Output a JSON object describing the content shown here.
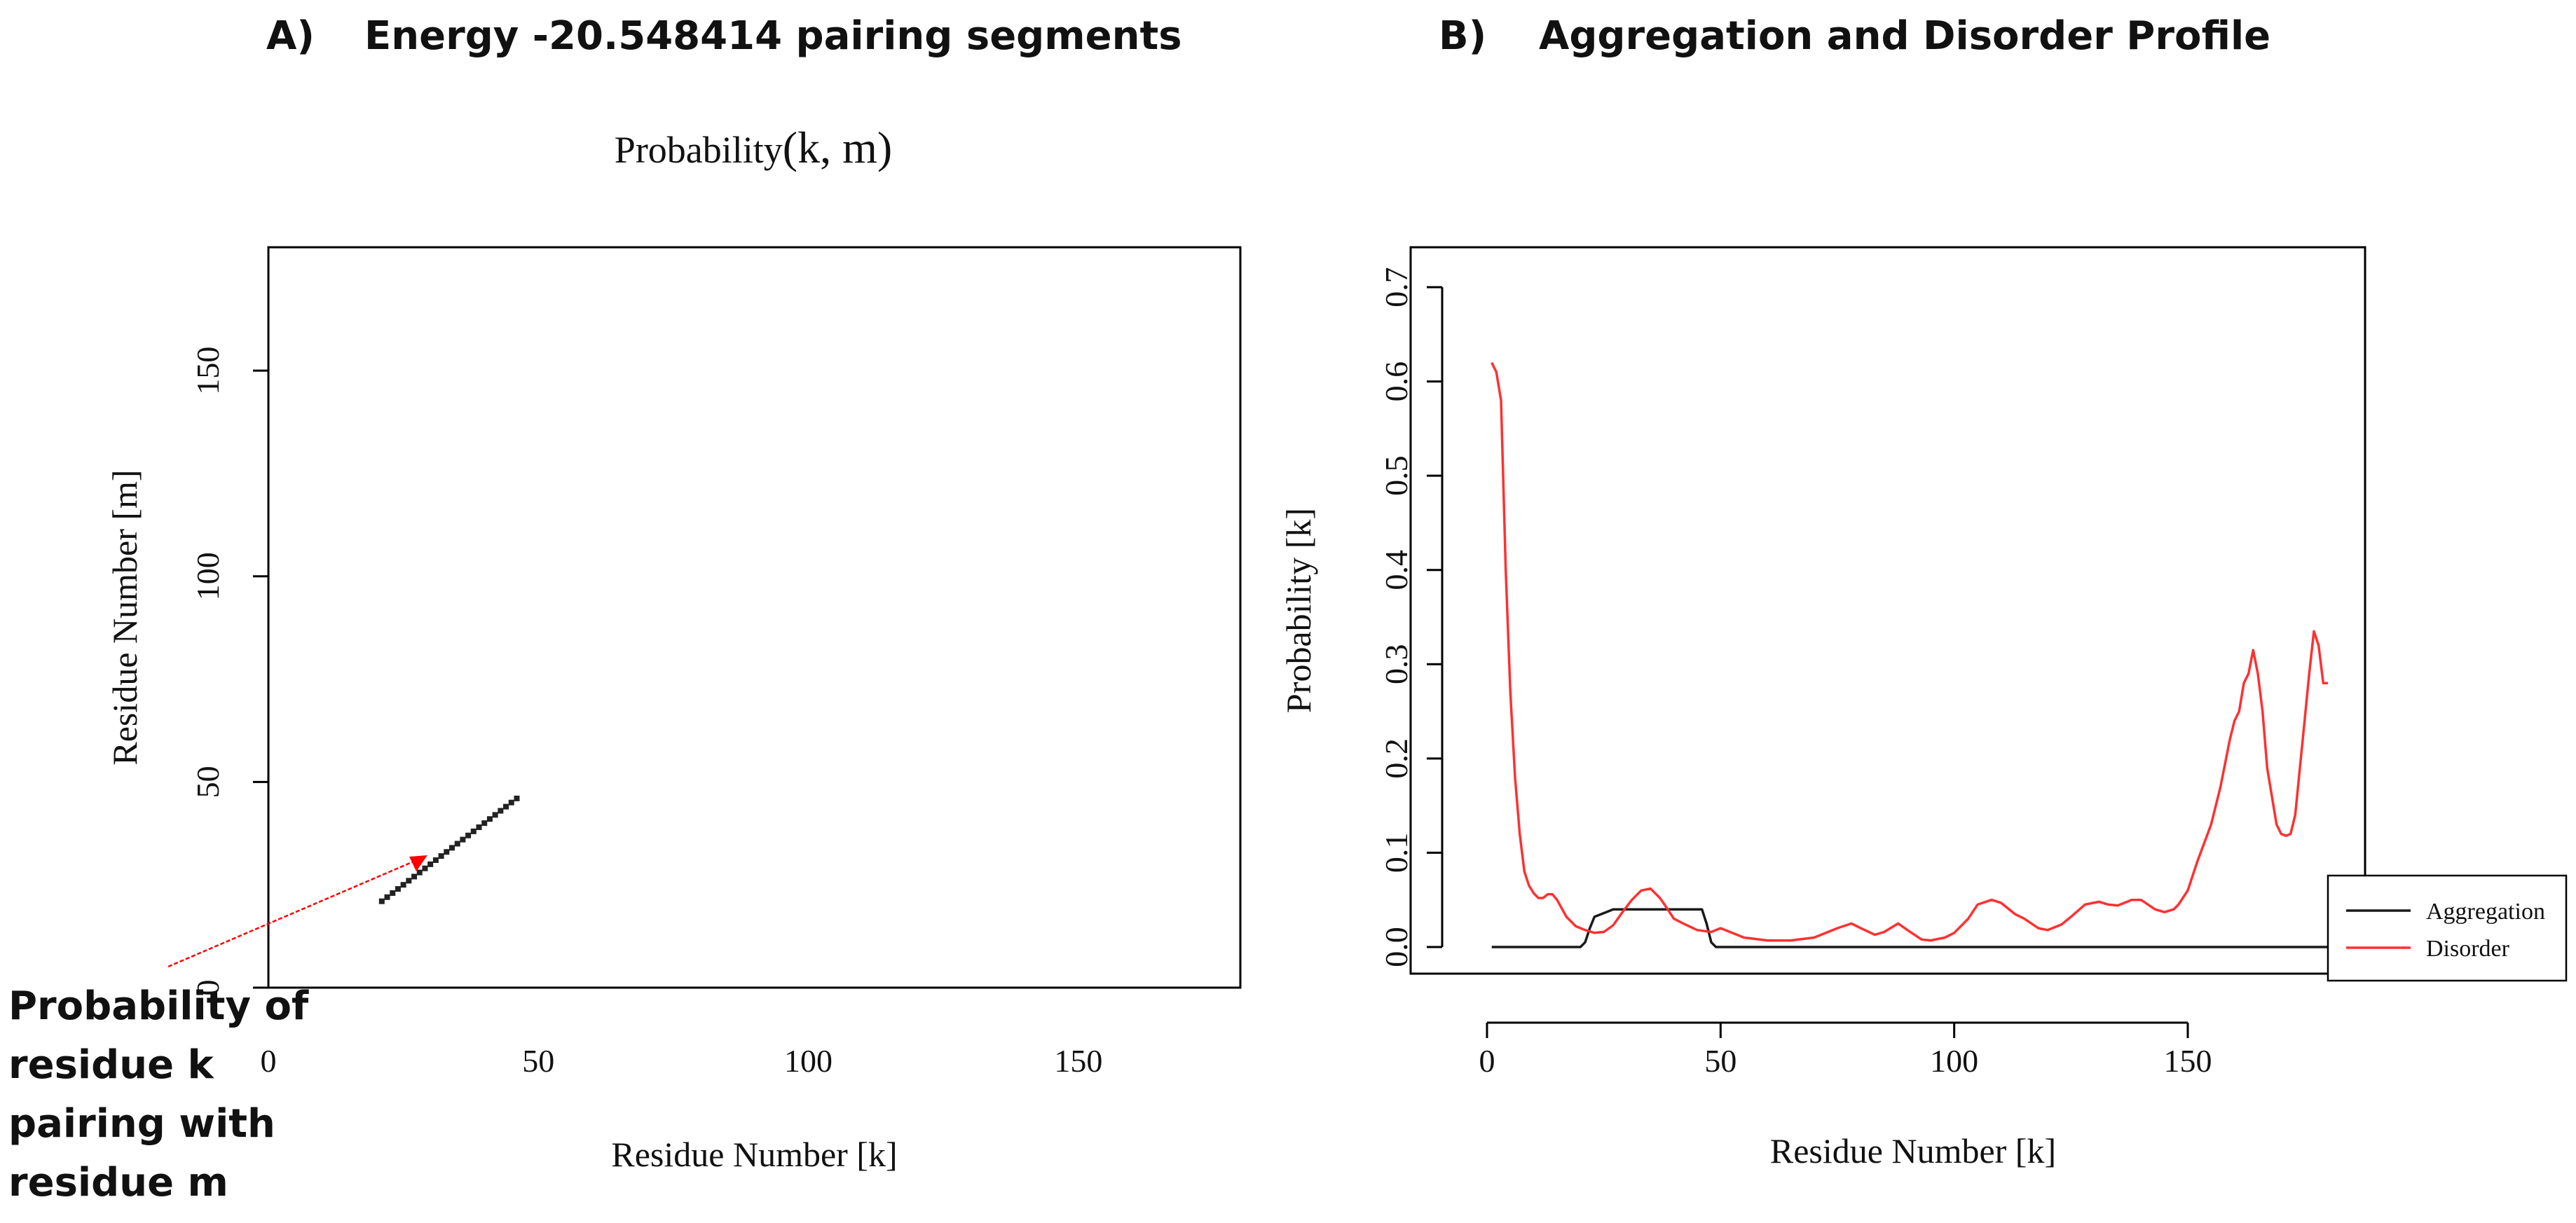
{
  "panel_a": {
    "title_letter": "A)",
    "title_text": "Energy -20.548414 pairing segments",
    "plot_title_main": "Probability",
    "plot_title_args": "(k, m)",
    "callout_lines": [
      "Probability of",
      "residue k",
      "pairing with",
      "residue m"
    ]
  },
  "panel_b": {
    "title_letter": "B)",
    "title_text": "Aggregation and Disorder Profile"
  },
  "colors": {
    "disorder": "#ff3030",
    "aggregation": "#1a1a1a",
    "arrow": "#ff0000",
    "frame": "#000000"
  },
  "chart_data": [
    {
      "type": "scatter",
      "title": "Probability(k, m)",
      "xlabel": "Residue Number [k]",
      "ylabel": "Residue Number [m]",
      "xlim": [
        0,
        180
      ],
      "ylim": [
        0,
        180
      ],
      "xticks": [
        0,
        50,
        100,
        150
      ],
      "yticks": [
        0,
        50,
        100,
        150
      ],
      "series": [
        {
          "x": [
            21,
            22,
            23,
            24,
            25,
            26,
            27,
            28,
            29,
            30,
            31,
            32,
            33,
            34,
            35,
            36,
            37,
            38,
            39,
            40,
            41,
            42,
            43,
            44,
            45,
            46
          ],
          "y": [
            21,
            22,
            23,
            24,
            25,
            26,
            27,
            28,
            29,
            30,
            31,
            32,
            33,
            34,
            35,
            36,
            37,
            38,
            39,
            40,
            41,
            42,
            43,
            44,
            45,
            46
          ]
        }
      ]
    },
    {
      "type": "line",
      "title": "",
      "xlabel": "Residue Number [k]",
      "ylabel": "Probability [k]",
      "xlim": [
        0,
        185
      ],
      "ylim": [
        0,
        0.7
      ],
      "xticks": [
        0,
        50,
        100,
        150
      ],
      "yticks": [
        0.0,
        0.1,
        0.2,
        0.3,
        0.4,
        0.5,
        0.6,
        0.7
      ],
      "legend": "bottom-right",
      "series": [
        {
          "name": "Aggregation",
          "x": [
            1,
            20,
            21,
            22,
            23,
            25,
            27,
            30,
            35,
            40,
            46,
            47,
            48,
            49,
            50,
            60,
            100,
            150,
            180
          ],
          "y": [
            0,
            0,
            0.005,
            0.02,
            0.032,
            0.036,
            0.04,
            0.04,
            0.04,
            0.04,
            0.04,
            0.025,
            0.005,
            0,
            0,
            0,
            0,
            0,
            0
          ]
        },
        {
          "name": "Disorder",
          "x": [
            1,
            2,
            3,
            4,
            5,
            6,
            7,
            8,
            9,
            10,
            11,
            12,
            13,
            14,
            15,
            17,
            19,
            21,
            23,
            25,
            27,
            29,
            31,
            33,
            35,
            36,
            37,
            38,
            40,
            42,
            45,
            48,
            50,
            52,
            55,
            60,
            65,
            70,
            75,
            78,
            80,
            83,
            85,
            88,
            90,
            93,
            95,
            98,
            100,
            103,
            105,
            108,
            110,
            113,
            115,
            118,
            120,
            123,
            125,
            128,
            131,
            133,
            135,
            138,
            140,
            143,
            145,
            147,
            148,
            150,
            152,
            155,
            157,
            159,
            160,
            161,
            162,
            163,
            164,
            165,
            166,
            167,
            168,
            169,
            170,
            171,
            172,
            173,
            174,
            175,
            176,
            177,
            178,
            179,
            180
          ],
          "y": [
            0.62,
            0.61,
            0.58,
            0.4,
            0.27,
            0.18,
            0.12,
            0.08,
            0.065,
            0.057,
            0.052,
            0.052,
            0.056,
            0.056,
            0.05,
            0.032,
            0.022,
            0.018,
            0.015,
            0.016,
            0.023,
            0.037,
            0.05,
            0.06,
            0.062,
            0.057,
            0.052,
            0.045,
            0.03,
            0.025,
            0.018,
            0.016,
            0.02,
            0.016,
            0.01,
            0.007,
            0.007,
            0.01,
            0.02,
            0.025,
            0.02,
            0.013,
            0.016,
            0.025,
            0.018,
            0.008,
            0.007,
            0.01,
            0.015,
            0.03,
            0.045,
            0.05,
            0.047,
            0.035,
            0.03,
            0.02,
            0.018,
            0.024,
            0.032,
            0.045,
            0.048,
            0.045,
            0.044,
            0.05,
            0.05,
            0.04,
            0.037,
            0.04,
            0.045,
            0.06,
            0.09,
            0.13,
            0.17,
            0.22,
            0.24,
            0.25,
            0.28,
            0.29,
            0.315,
            0.29,
            0.25,
            0.19,
            0.16,
            0.13,
            0.12,
            0.118,
            0.12,
            0.14,
            0.19,
            0.24,
            0.29,
            0.335,
            0.32,
            0.28,
            0.28
          ]
        }
      ]
    }
  ]
}
